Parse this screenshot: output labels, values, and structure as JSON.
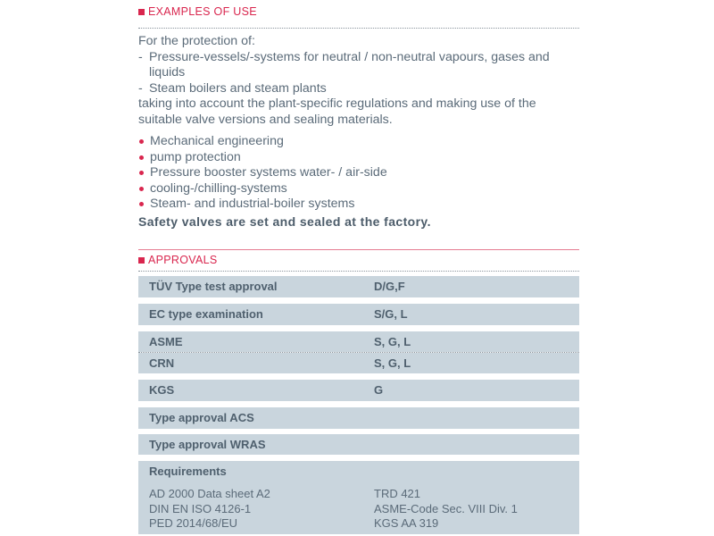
{
  "examples": {
    "heading": "EXAMPLES OF USE",
    "intro": "For the protection of:",
    "dash_items": [
      "Pressure-vessels/-systems for neutral / non-neutral vapours, gases and liquids",
      "Steam boilers and steam plants"
    ],
    "note": "taking into account the plant-specific regulations and making use of the suitable valve versions and sealing materials.",
    "bullets": [
      "Mechanical engineering",
      "pump protection",
      "Pressure booster systems water- / air-side",
      "cooling-/chilling-systems",
      "Steam- and industrial-boiler systems"
    ],
    "emphasis": "Safety valves are set and sealed at the factory."
  },
  "approvals": {
    "heading": "APPROVALS",
    "rows": [
      {
        "name": "TÜV Type test approval",
        "value": "D/G,F"
      },
      {
        "name": "EC type examination",
        "value": "S/G, L"
      },
      {
        "name": "ASME",
        "value": "S, G, L"
      },
      {
        "name": "CRN",
        "value": "S, G, L"
      },
      {
        "name": "KGS",
        "value": "G"
      },
      {
        "name": "Type approval ACS",
        "value": ""
      },
      {
        "name": "Type approval WRAS",
        "value": ""
      }
    ],
    "requirements": {
      "heading": "Requirements",
      "left": [
        "AD 2000 Data sheet A2",
        "DIN EN ISO 4126-1",
        "PED 2014/68/EU"
      ],
      "right": [
        "TRD 421",
        "ASME-Code Sec. VIII Div. 1",
        "KGS AA 319"
      ]
    }
  },
  "colors": {
    "accent": "#d9264e",
    "table_bg": "#c9d5dd",
    "text": "#5b6b79"
  }
}
